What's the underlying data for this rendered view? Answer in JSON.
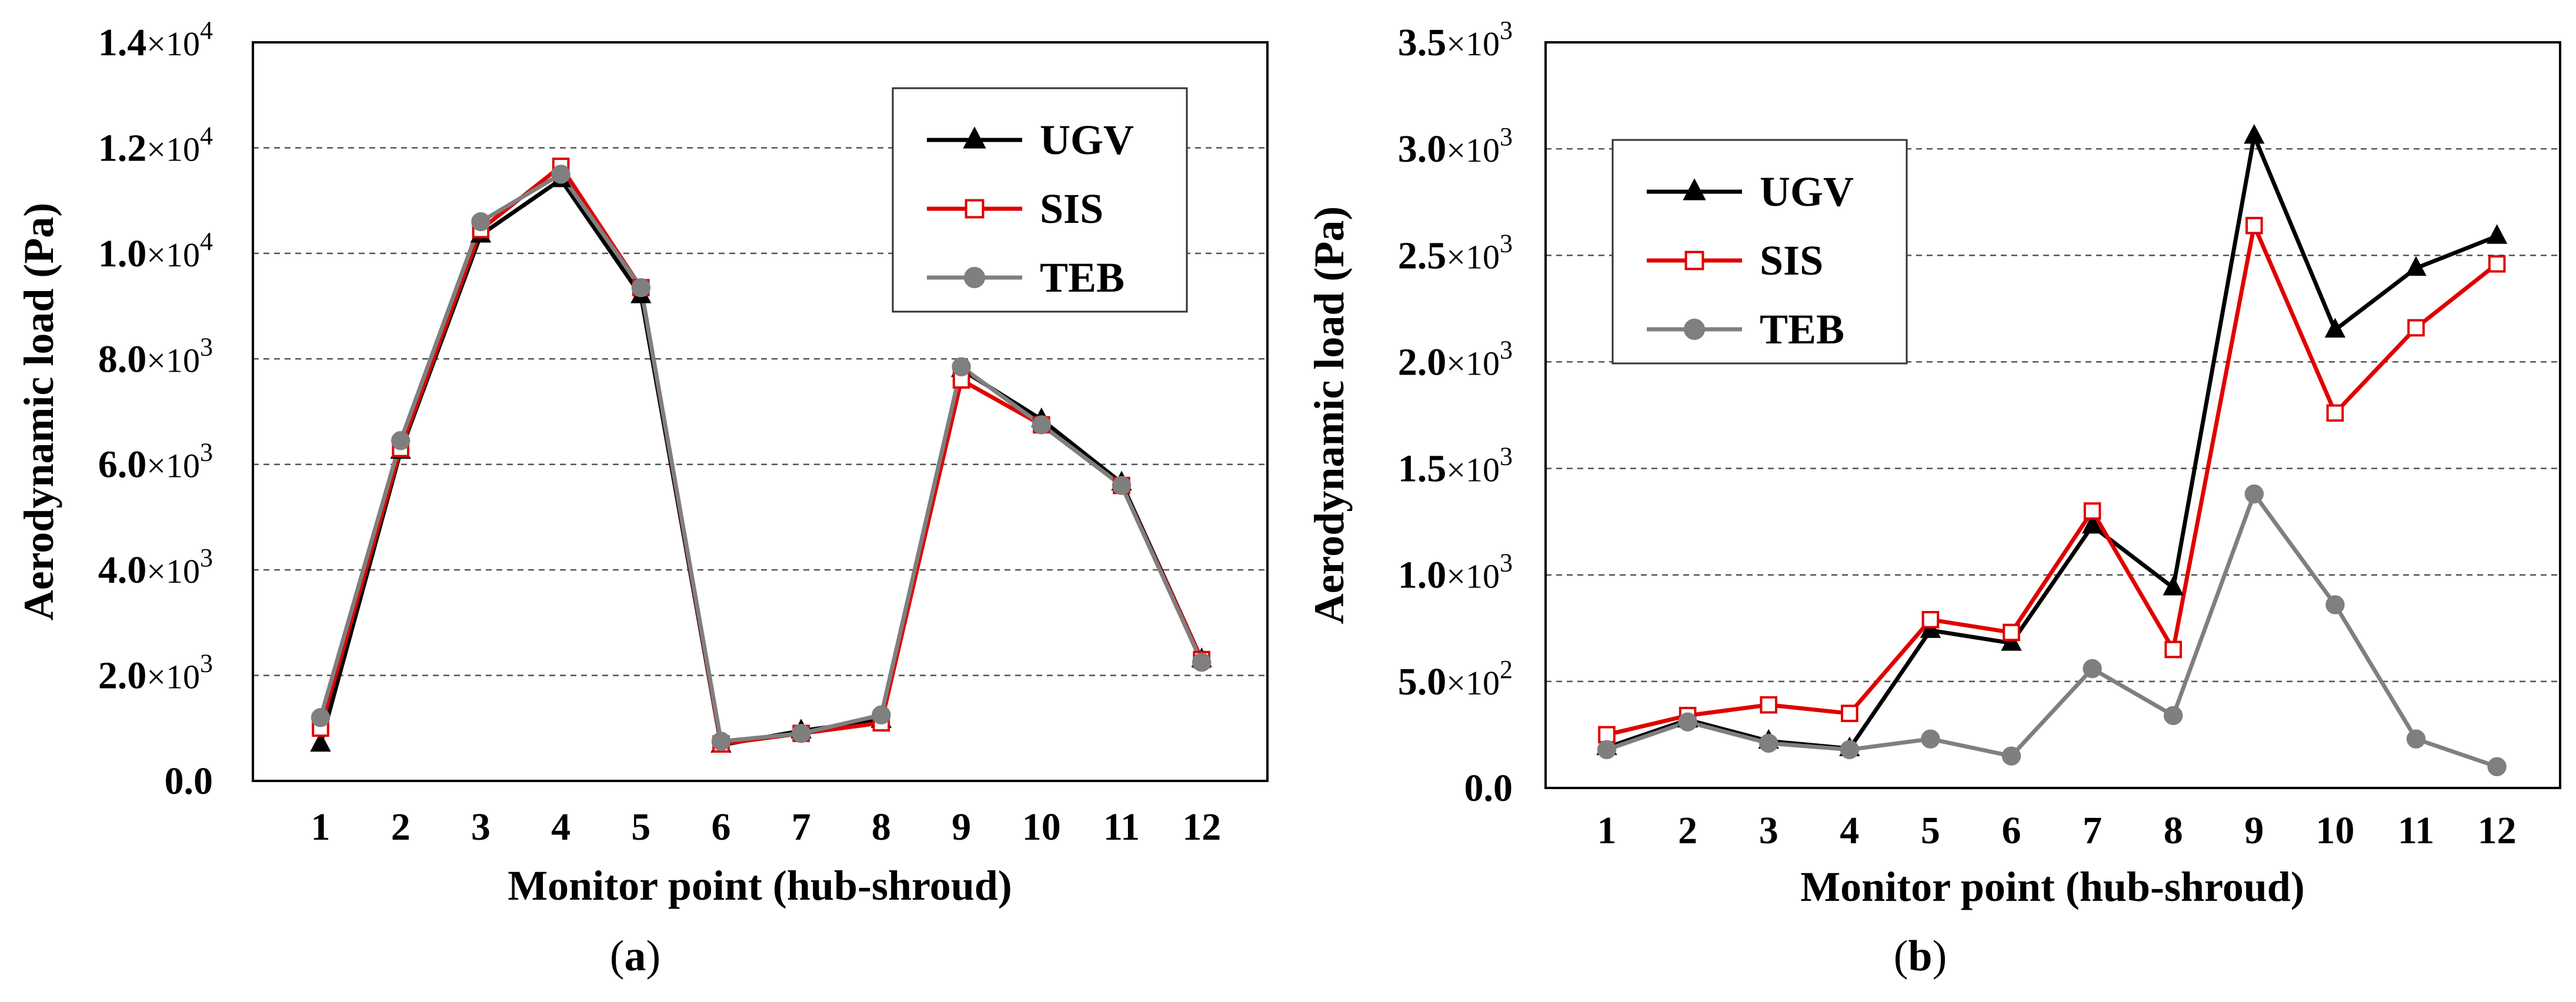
{
  "figure": {
    "panels": [
      {
        "label_open": "(",
        "label_letter": "a",
        "label_close": ")"
      },
      {
        "label_open": "(",
        "label_letter": "b",
        "label_close": ")"
      }
    ]
  },
  "chart_data": [
    {
      "type": "line",
      "panel": "a",
      "xlabel": "Monitor point (hub-shroud)",
      "ylabel": "Aerodynamic load (Pa)",
      "categories": [
        "1",
        "2",
        "3",
        "4",
        "5",
        "6",
        "7",
        "8",
        "9",
        "10",
        "11",
        "12"
      ],
      "ylim": [
        0,
        14000
      ],
      "yticks": [
        {
          "value": 0,
          "mantissa": "0.0",
          "exponent": ""
        },
        {
          "value": 2000,
          "mantissa": "2.0",
          "exponent": "3"
        },
        {
          "value": 4000,
          "mantissa": "4.0",
          "exponent": "3"
        },
        {
          "value": 6000,
          "mantissa": "6.0",
          "exponent": "3"
        },
        {
          "value": 8000,
          "mantissa": "8.0",
          "exponent": "3"
        },
        {
          "value": 10000,
          "mantissa": "1.0",
          "exponent": "4"
        },
        {
          "value": 12000,
          "mantissa": "1.2",
          "exponent": "4"
        },
        {
          "value": 14000,
          "mantissa": "1.4",
          "exponent": "4"
        }
      ],
      "times_sign": "×10",
      "grid": true,
      "legend_position": "top-right",
      "series": [
        {
          "name": "UGV",
          "color": "#000000",
          "marker": "triangle",
          "values": [
            700,
            6250,
            10350,
            11400,
            9200,
            680,
            950,
            1150,
            7800,
            6850,
            5650,
            2300
          ]
        },
        {
          "name": "SIS",
          "color": "#e00000",
          "marker": "open-square",
          "values": [
            1000,
            6300,
            10450,
            11650,
            9350,
            700,
            900,
            1100,
            7600,
            6750,
            5600,
            2300
          ]
        },
        {
          "name": "TEB",
          "color": "#7f7f7f",
          "marker": "circle",
          "values": [
            1200,
            6450,
            10600,
            11500,
            9350,
            750,
            900,
            1250,
            7850,
            6750,
            5600,
            2250
          ]
        }
      ]
    },
    {
      "type": "line",
      "panel": "b",
      "xlabel": "Monitor point (hub-shroud)",
      "ylabel": "Aerodynamic load (Pa)",
      "categories": [
        "1",
        "2",
        "3",
        "4",
        "5",
        "6",
        "7",
        "8",
        "9",
        "10",
        "11",
        "12"
      ],
      "ylim": [
        0,
        3500
      ],
      "yticks": [
        {
          "value": 0,
          "mantissa": "0.0",
          "exponent": ""
        },
        {
          "value": 500,
          "mantissa": "5.0",
          "exponent": "2"
        },
        {
          "value": 1000,
          "mantissa": "1.0",
          "exponent": "3"
        },
        {
          "value": 1500,
          "mantissa": "1.5",
          "exponent": "3"
        },
        {
          "value": 2000,
          "mantissa": "2.0",
          "exponent": "3"
        },
        {
          "value": 2500,
          "mantissa": "2.5",
          "exponent": "3"
        },
        {
          "value": 3000,
          "mantissa": "3.0",
          "exponent": "3"
        },
        {
          "value": 3500,
          "mantissa": "3.5",
          "exponent": "3"
        }
      ],
      "times_sign": "×10",
      "grid": true,
      "legend_position": "top-left",
      "series": [
        {
          "name": "UGV",
          "color": "#000000",
          "marker": "triangle",
          "values": [
            190,
            320,
            220,
            185,
            740,
            680,
            1230,
            940,
            3060,
            2150,
            2440,
            2590
          ]
        },
        {
          "name": "SIS",
          "color": "#e00000",
          "marker": "open-square",
          "values": [
            250,
            340,
            390,
            350,
            790,
            730,
            1300,
            650,
            2640,
            1760,
            2160,
            2460
          ]
        },
        {
          "name": "TEB",
          "color": "#7f7f7f",
          "marker": "circle",
          "values": [
            180,
            310,
            210,
            180,
            230,
            150,
            560,
            340,
            1380,
            860,
            230,
            100
          ]
        }
      ]
    }
  ]
}
